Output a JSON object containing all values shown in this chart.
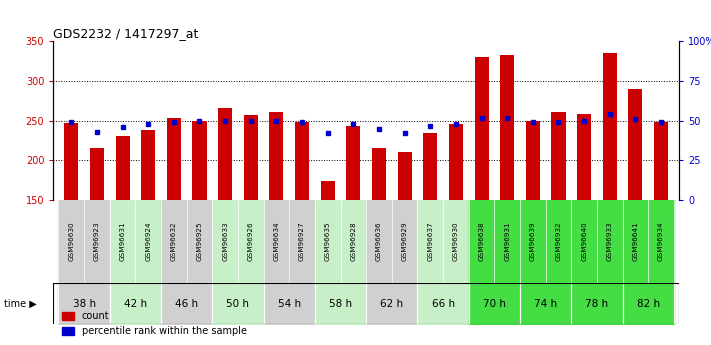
{
  "title": "GDS2232 / 1417297_at",
  "gsm_labels": [
    "GSM96630",
    "GSM96923",
    "GSM96631",
    "GSM96924",
    "GSM96632",
    "GSM96925",
    "GSM96633",
    "GSM96926",
    "GSM96634",
    "GSM96927",
    "GSM96635",
    "GSM96928",
    "GSM96636",
    "GSM96929",
    "GSM96637",
    "GSM96930",
    "GSM96638",
    "GSM96931",
    "GSM96639",
    "GSM96932",
    "GSM96640",
    "GSM96933",
    "GSM96641",
    "GSM96934"
  ],
  "time_groups": [
    {
      "label": "38 h",
      "indices": [
        0,
        1
      ],
      "color": "#d0d0d0"
    },
    {
      "label": "42 h",
      "indices": [
        2,
        3
      ],
      "color": "#c8f0c8"
    },
    {
      "label": "46 h",
      "indices": [
        4,
        5
      ],
      "color": "#d0d0d0"
    },
    {
      "label": "50 h",
      "indices": [
        6,
        7
      ],
      "color": "#c8f0c8"
    },
    {
      "label": "54 h",
      "indices": [
        8,
        9
      ],
      "color": "#d0d0d0"
    },
    {
      "label": "58 h",
      "indices": [
        10,
        11
      ],
      "color": "#c8f0c8"
    },
    {
      "label": "62 h",
      "indices": [
        12,
        13
      ],
      "color": "#d0d0d0"
    },
    {
      "label": "66 h",
      "indices": [
        14,
        15
      ],
      "color": "#c8f0c8"
    },
    {
      "label": "70 h",
      "indices": [
        16,
        17
      ],
      "color": "#44dd44"
    },
    {
      "label": "74 h",
      "indices": [
        18,
        19
      ],
      "color": "#44dd44"
    },
    {
      "label": "78 h",
      "indices": [
        20,
        21
      ],
      "color": "#44dd44"
    },
    {
      "label": "82 h",
      "indices": [
        22,
        23
      ],
      "color": "#44dd44"
    }
  ],
  "gsm_col_colors": [
    "#d0d0d0",
    "#d0d0d0",
    "#c8f0c8",
    "#c8f0c8",
    "#d0d0d0",
    "#d0d0d0",
    "#c8f0c8",
    "#c8f0c8",
    "#d0d0d0",
    "#d0d0d0",
    "#c8f0c8",
    "#c8f0c8",
    "#d0d0d0",
    "#d0d0d0",
    "#c8f0c8",
    "#c8f0c8",
    "#44dd44",
    "#44dd44",
    "#44dd44",
    "#44dd44",
    "#44dd44",
    "#44dd44",
    "#44dd44",
    "#44dd44"
  ],
  "counts": [
    247,
    216,
    231,
    238,
    253,
    250,
    266,
    257,
    261,
    248,
    174,
    243,
    216,
    211,
    235,
    246,
    330,
    333,
    250,
    261,
    258,
    335,
    290,
    248
  ],
  "percentile_ranks": [
    49,
    43,
    46,
    48,
    49,
    50,
    50,
    50,
    50,
    49,
    42,
    48,
    45,
    42,
    47,
    48,
    52,
    52,
    49,
    49,
    50,
    54,
    51,
    49
  ],
  "bar_color": "#cc0000",
  "dot_color": "#0000cc",
  "ymin": 150,
  "ymax": 350,
  "yticks": [
    150,
    200,
    250,
    300,
    350
  ],
  "y2min": 0,
  "y2max": 100,
  "y2ticks": [
    0,
    25,
    50,
    75,
    100
  ],
  "y2ticklabels": [
    "0",
    "25",
    "50",
    "75",
    "100%"
  ],
  "bar_width": 0.55
}
